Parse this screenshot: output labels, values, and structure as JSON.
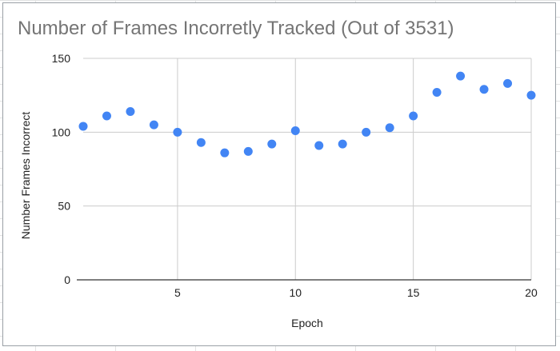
{
  "chart_data": {
    "type": "scatter",
    "title": "Number of Frames Incorretly Tracked (Out of 3531)",
    "xlabel": "Epoch",
    "ylabel": "Number Frames Incorrect",
    "xlim": [
      1,
      20
    ],
    "ylim": [
      0,
      150
    ],
    "xticks": [
      5,
      10,
      15,
      20
    ],
    "yticks": [
      0,
      50,
      100,
      150
    ],
    "grid": true,
    "point_color": "#4285f4",
    "series": [
      {
        "x": [
          1,
          2,
          3,
          4,
          5,
          6,
          7,
          8,
          9,
          10,
          11,
          12,
          13,
          14,
          15,
          16,
          17,
          18,
          19,
          20
        ],
        "y": [
          104,
          111,
          114,
          105,
          100,
          93,
          86,
          87,
          92,
          101,
          91,
          92,
          100,
          103,
          111,
          127,
          138,
          129,
          133,
          125
        ]
      }
    ]
  }
}
